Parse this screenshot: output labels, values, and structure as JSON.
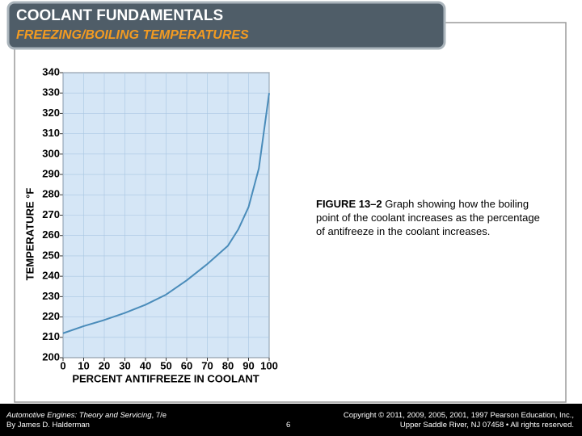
{
  "header": {
    "title": "COOLANT FUNDAMENTALS",
    "subtitle": "FREEZING/BOILING TEMPERATURES"
  },
  "chart_data": {
    "type": "line",
    "xlabel": "PERCENT ANTIFREEZE IN COOLANT",
    "ylabel": "TEMPERATURE °F",
    "x": [
      0,
      10,
      20,
      30,
      40,
      50,
      60,
      70,
      80,
      85,
      90,
      95,
      100
    ],
    "values": [
      212,
      215.5,
      218.5,
      222,
      226,
      231,
      238,
      246,
      255,
      263,
      274,
      293,
      330
    ],
    "color": "#4a8cba",
    "background": "#d5e6f6",
    "xlim": [
      0,
      100
    ],
    "ylim": [
      200,
      340
    ],
    "xticks": [
      0,
      10,
      20,
      30,
      40,
      50,
      60,
      70,
      80,
      90,
      100
    ],
    "yticks": [
      200,
      210,
      220,
      230,
      240,
      250,
      260,
      270,
      280,
      290,
      300,
      310,
      320,
      330,
      340
    ],
    "grid": true
  },
  "caption": {
    "label": "FIGURE 13–2",
    "text": "Graph showing how the boiling point of the coolant increases as the percentage of antifreeze in the coolant increases."
  },
  "footer": {
    "book_title": "Automotive Engines: Theory and Servicing",
    "edition": ", 7/e",
    "author": "By James D. Halderman",
    "page": "6",
    "copyright_line1": "Copyright © 2011, 2009, 2005, 2001, 1997 Pearson Education, Inc.,",
    "copyright_line2": "Upper Saddle River, NJ 07458 • All rights reserved."
  }
}
